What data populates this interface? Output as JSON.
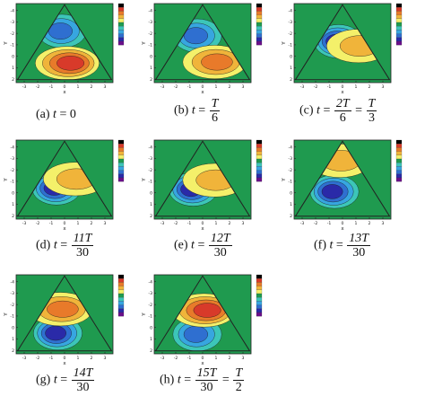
{
  "chart_data": [
    {
      "type": "heatmap",
      "panel_label": "(a)",
      "caption_var": "t",
      "caption_value": "0",
      "caption_num": "",
      "caption_den": "",
      "caption_tail": "",
      "caption_tail_num": "",
      "caption_tail_den": "",
      "xlabel": "x",
      "ylabel": "Y",
      "xticks": [
        "-3",
        "-2",
        "-1",
        "0",
        "1",
        "2",
        "3"
      ],
      "yticks": [
        "-4",
        "-3",
        "-2",
        "-1",
        "0",
        "1",
        "2"
      ],
      "legend_levels": [
        "",
        "",
        "",
        "",
        "",
        "",
        "",
        "",
        "",
        "",
        ""
      ],
      "vortices": [
        {
          "x": -0.2,
          "y": -2.2,
          "sign": -1,
          "strength": 3
        },
        {
          "x": 0.2,
          "y": 0.6,
          "sign": 1,
          "strength": 4
        }
      ]
    },
    {
      "type": "heatmap",
      "panel_label": "(b)",
      "caption_var": "t",
      "caption_value": "",
      "caption_num": "T",
      "caption_den": "6",
      "caption_tail": "",
      "caption_tail_num": "",
      "caption_tail_den": "",
      "xlabel": "x",
      "ylabel": "Y",
      "xticks": [
        "-3",
        "-2",
        "-1",
        "0",
        "1",
        "2",
        "3"
      ],
      "yticks": [
        "-4",
        "-3",
        "-2",
        "-1",
        "0",
        "1",
        "2"
      ],
      "legend_levels": [
        "",
        "",
        "",
        "",
        "",
        "",
        "",
        "",
        "",
        "",
        ""
      ],
      "vortices": [
        {
          "x": -0.4,
          "y": -1.8,
          "sign": -1,
          "strength": 3
        },
        {
          "x": 0.9,
          "y": 0.5,
          "sign": 1,
          "strength": 3
        }
      ]
    },
    {
      "type": "heatmap",
      "panel_label": "(c)",
      "caption_var": "t",
      "caption_value": "",
      "caption_num": "2T",
      "caption_den": "6",
      "caption_tail": "=",
      "caption_tail_num": "T",
      "caption_tail_den": "3",
      "xlabel": "x",
      "ylabel": "Y",
      "xticks": [
        "-3",
        "-2",
        "-1",
        "0",
        "1",
        "2",
        "3"
      ],
      "yticks": [
        "-4",
        "-3",
        "-2",
        "-1",
        "0",
        "1",
        "2"
      ],
      "legend_levels": [
        "",
        "",
        "",
        "",
        "",
        "",
        "",
        "",
        "",
        "",
        ""
      ],
      "vortices": [
        {
          "x": -0.3,
          "y": -1.3,
          "sign": -1,
          "strength": 4
        },
        {
          "x": 1.2,
          "y": -0.9,
          "sign": 1,
          "strength": 2
        }
      ]
    },
    {
      "type": "heatmap",
      "panel_label": "(d)",
      "caption_var": "t",
      "caption_value": "",
      "caption_num": "11T",
      "caption_den": "30",
      "caption_tail": "",
      "caption_tail_num": "",
      "caption_tail_den": "",
      "xlabel": "x",
      "ylabel": "Y",
      "xticks": [
        "-3",
        "-2",
        "-1",
        "0",
        "1",
        "2",
        "3"
      ],
      "yticks": [
        "-4",
        "-3",
        "-2",
        "-1",
        "0",
        "1",
        "2"
      ],
      "legend_levels": [
        "",
        "",
        "",
        "",
        "",
        "",
        "",
        "",
        "",
        "",
        ""
      ],
      "vortices": [
        {
          "x": -0.6,
          "y": -0.4,
          "sign": -1,
          "strength": 4
        },
        {
          "x": 0.8,
          "y": -1.2,
          "sign": 1,
          "strength": 2
        }
      ]
    },
    {
      "type": "heatmap",
      "panel_label": "(e)",
      "caption_var": "t",
      "caption_value": "",
      "caption_num": "12T",
      "caption_den": "30",
      "caption_tail": "",
      "caption_tail_num": "",
      "caption_tail_den": "",
      "xlabel": "x",
      "ylabel": "Y",
      "xticks": [
        "-3",
        "-2",
        "-1",
        "0",
        "1",
        "2",
        "3"
      ],
      "yticks": [
        "-4",
        "-3",
        "-2",
        "-1",
        "0",
        "1",
        "2"
      ],
      "legend_levels": [
        "",
        "",
        "",
        "",
        "",
        "",
        "",
        "",
        "",
        "",
        ""
      ],
      "vortices": [
        {
          "x": -0.7,
          "y": -0.3,
          "sign": -1,
          "strength": 4
        },
        {
          "x": 0.9,
          "y": -1.1,
          "sign": 1,
          "strength": 2
        }
      ]
    },
    {
      "type": "heatmap",
      "panel_label": "(f)",
      "caption_var": "t",
      "caption_value": "",
      "caption_num": "13T",
      "caption_den": "30",
      "caption_tail": "",
      "caption_tail_num": "",
      "caption_tail_den": "",
      "xlabel": "x",
      "ylabel": "Y",
      "xticks": [
        "-3",
        "-2",
        "-1",
        "0",
        "1",
        "2",
        "3"
      ],
      "yticks": [
        "-4",
        "-3",
        "-2",
        "-1",
        "0",
        "1",
        "2"
      ],
      "legend_levels": [
        "",
        "",
        "",
        "",
        "",
        "",
        "",
        "",
        "",
        "",
        ""
      ],
      "vortices": [
        {
          "x": -0.6,
          "y": -0.1,
          "sign": -1,
          "strength": 4
        },
        {
          "x": -0.2,
          "y": -2.8,
          "sign": 1,
          "strength": 2
        }
      ]
    },
    {
      "type": "heatmap",
      "panel_label": "(g)",
      "caption_var": "t",
      "caption_value": "",
      "caption_num": "14T",
      "caption_den": "30",
      "caption_tail": "",
      "caption_tail_num": "",
      "caption_tail_den": "",
      "xlabel": "x",
      "ylabel": "Y",
      "xticks": [
        "-3",
        "-2",
        "-1",
        "0",
        "1",
        "2",
        "3"
      ],
      "yticks": [
        "-4",
        "-3",
        "-2",
        "-1",
        "0",
        "1",
        "2"
      ],
      "legend_levels": [
        "",
        "",
        "",
        "",
        "",
        "",
        "",
        "",
        "",
        "",
        ""
      ],
      "vortices": [
        {
          "x": -0.5,
          "y": 0.5,
          "sign": -1,
          "strength": 4
        },
        {
          "x": -0.3,
          "y": -1.6,
          "sign": 1,
          "strength": 3
        }
      ]
    },
    {
      "type": "heatmap",
      "panel_label": "(h)",
      "caption_var": "t",
      "caption_value": "",
      "caption_num": "15T",
      "caption_den": "30",
      "caption_tail": "=",
      "caption_tail_num": "T",
      "caption_tail_den": "2",
      "xlabel": "x",
      "ylabel": "Y",
      "xticks": [
        "-3",
        "-2",
        "-1",
        "0",
        "1",
        "2",
        "3"
      ],
      "yticks": [
        "-4",
        "-3",
        "-2",
        "-1",
        "0",
        "1",
        "2"
      ],
      "legend_levels": [
        "",
        "",
        "",
        "",
        "",
        "",
        "",
        "",
        "",
        "",
        ""
      ],
      "vortices": [
        {
          "x": -0.4,
          "y": 0.6,
          "sign": -1,
          "strength": 3
        },
        {
          "x": 0.1,
          "y": -1.5,
          "sign": 1,
          "strength": 4
        }
      ]
    }
  ],
  "colors": {
    "background": "#1f9a4f",
    "domain_edge": "#222222",
    "levels": [
      "#6a0f8a",
      "#2a2aa8",
      "#2f6fd0",
      "#37a6e0",
      "#3cc6b8",
      "#1f9a4f",
      "#f4f06a",
      "#f0b43a",
      "#e87a2a",
      "#d83a2a",
      "#000000"
    ]
  }
}
